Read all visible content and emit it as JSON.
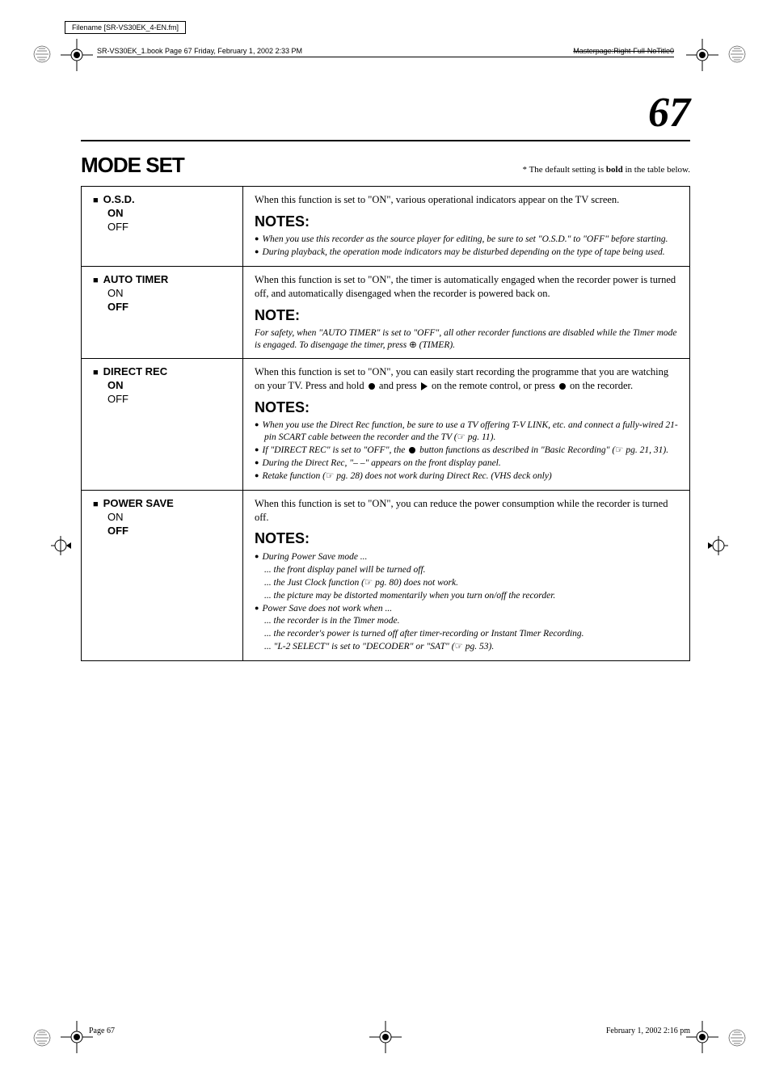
{
  "filenameLabel": "Filename [SR-VS30EK_4-EN.fm]",
  "bookInfo": {
    "left": "SR-VS30EK_1.book  Page 67  Friday, February 1, 2002  2:33 PM",
    "right": "Masterpage:Right-Full-NoTitle0"
  },
  "pageNumber": "67",
  "sectionTitle": "MODE SET",
  "defaultNotePrefix": "* The default setting is ",
  "defaultNoteBold": "bold",
  "defaultNoteSuffix": " in the table below.",
  "rows": [
    {
      "title": "O.S.D.",
      "options": [
        {
          "text": "ON",
          "bold": true
        },
        {
          "text": "OFF",
          "bold": false
        }
      ],
      "desc": "When this function is set to \"ON\", various operational indicators appear on the TV screen.",
      "notesHeading": "NOTES:",
      "notes": [
        {
          "type": "bullet",
          "text": "When you use this recorder as the source player for editing, be sure to set \"O.S.D.\" to \"OFF\" before starting."
        },
        {
          "type": "bullet",
          "text": "During playback, the operation mode indicators may be disturbed depending on the type of tape being used."
        }
      ]
    },
    {
      "title": "AUTO TIMER",
      "options": [
        {
          "text": "ON",
          "bold": false
        },
        {
          "text": "OFF",
          "bold": true
        }
      ],
      "desc": "When this function is set to \"ON\", the timer is automatically engaged when the recorder power is turned off, and automatically disengaged when the recorder is powered back on.",
      "notesHeading": "NOTE:",
      "noteSingleHtml": "For safety, when \"AUTO TIMER\" is set to \"OFF\", all other recorder functions are disabled while the Timer mode is engaged. To disengage the timer, press <span class='timer-symbol'>⊕</span> (TIMER)."
    },
    {
      "title": "DIRECT REC",
      "options": [
        {
          "text": "ON",
          "bold": true
        },
        {
          "text": "OFF",
          "bold": false
        }
      ],
      "descHtml": "When this function is set to \"ON\", you can easily start recording the programme that you are watching on your TV. Press and hold <span class='rec-symbol'></span> and press <span class='play-symbol'></span> on the remote control, or press <span class='rec-symbol'></span> on the recorder.",
      "notesHeading": "NOTES:",
      "notesHtml": [
        {
          "type": "bullet",
          "html": "When you use the Direct Rec function, be sure to use a TV offering T-V LINK, etc. and connect a fully-wired 21-pin SCART cable between the recorder and the TV (<span class='pointer'>☞</span> pg. 11)."
        },
        {
          "type": "bullet",
          "html": "If \"DIRECT REC\" is set to \"OFF\", the <span class='rec-symbol'></span> button functions as described in \"Basic Recording\" (<span class='pointer'>☞</span> pg. 21, 31)."
        },
        {
          "type": "bullet",
          "html": "During the Direct Rec, \"– –\" appears on the front display panel."
        },
        {
          "type": "bullet",
          "html": "Retake function (<span class='pointer'>☞</span> pg. 28) does not work during Direct Rec. (VHS deck only)"
        }
      ]
    },
    {
      "title": "POWER SAVE",
      "options": [
        {
          "text": "ON",
          "bold": false
        },
        {
          "text": "OFF",
          "bold": true
        }
      ],
      "desc": "When this function is set to \"ON\", you can reduce the power consumption while the recorder is turned off.",
      "notesHeading": "NOTES:",
      "notesHtml": [
        {
          "type": "bullet",
          "html": "During Power Save mode ..."
        },
        {
          "type": "sub",
          "html": "... the front display panel will be turned off."
        },
        {
          "type": "sub",
          "html": "... the Just Clock function (<span class='pointer'>☞</span> pg. 80) does not work."
        },
        {
          "type": "sub",
          "html": "... the picture may be distorted momentarily when you turn on/off the recorder."
        },
        {
          "type": "bullet",
          "html": "Power Save does not work when ..."
        },
        {
          "type": "sub",
          "html": "... the recorder is in the Timer mode."
        },
        {
          "type": "sub",
          "html": "... the recorder's power is turned off after timer-recording or Instant Timer Recording."
        },
        {
          "type": "sub",
          "html": "... \"L-2 SELECT\" is set to \"DECODER\" or \"SAT\" (<span class='pointer'>☞</span> pg. 53)."
        }
      ]
    }
  ],
  "footer": {
    "left": "Page 67",
    "right": "February 1, 2002 2:16 pm"
  },
  "colors": {
    "text": "#000000",
    "background": "#ffffff",
    "border": "#000000"
  }
}
